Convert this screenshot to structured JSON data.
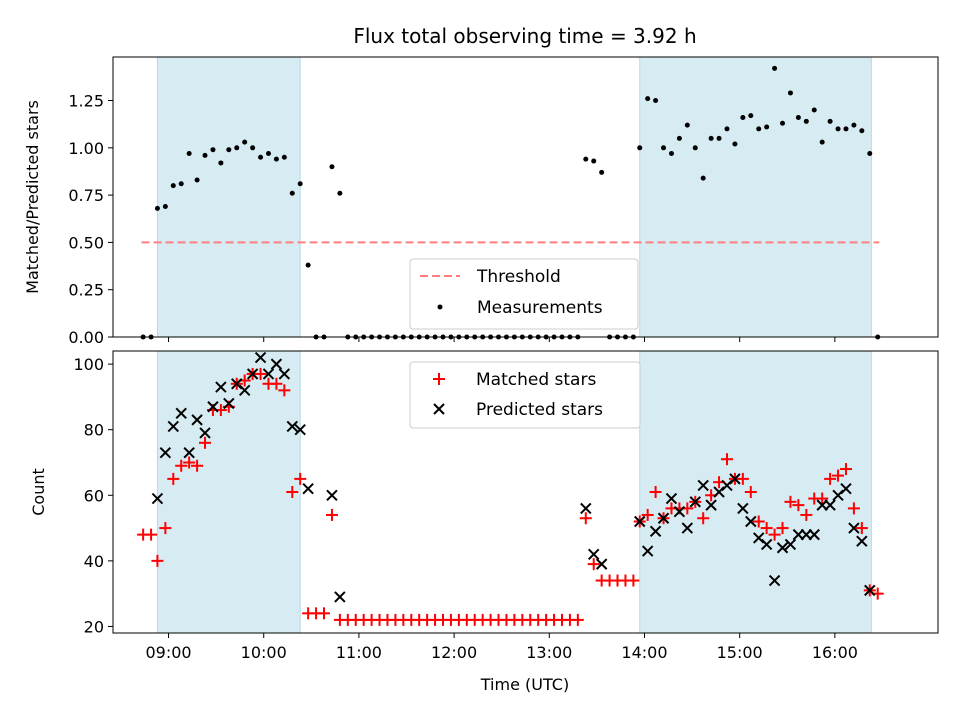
{
  "chart_data": [
    {
      "type": "scatter",
      "title": "Flux total observing time = 3.92 h",
      "xlabel": "",
      "ylabel": "Matched/Predicted stars",
      "ylim": [
        0,
        1.48
      ],
      "y_ticks": [
        0.0,
        0.25,
        0.5,
        0.75,
        1.0,
        1.25
      ],
      "y_tick_labels": [
        "0.00",
        "0.25",
        "0.50",
        "0.75",
        "1.00",
        "1.25"
      ],
      "legend_position": "lower center",
      "shaded_intervals": [
        [
          "08:53",
          "10:23"
        ],
        [
          "13:57",
          "16:23"
        ]
      ],
      "threshold": {
        "name": "Threshold",
        "value": 0.5,
        "x_range": [
          "08:43",
          "16:28"
        ],
        "color": "#ff7f7f",
        "style": "dashed"
      },
      "series": [
        {
          "name": "Measurements",
          "marker": "dot",
          "color": "#000000",
          "points": [
            [
              "08:44",
              0
            ],
            [
              "08:49",
              0
            ],
            [
              "08:53",
              0.68
            ],
            [
              "08:58",
              0.69
            ],
            [
              "09:03",
              0.8
            ],
            [
              "09:08",
              0.81
            ],
            [
              "09:13",
              0.97
            ],
            [
              "09:18",
              0.83
            ],
            [
              "09:23",
              0.96
            ],
            [
              "09:28",
              0.99
            ],
            [
              "09:33",
              0.92
            ],
            [
              "09:38",
              0.99
            ],
            [
              "09:43",
              1.0
            ],
            [
              "09:48",
              1.03
            ],
            [
              "09:53",
              1.0
            ],
            [
              "09:58",
              0.95
            ],
            [
              "10:03",
              0.97
            ],
            [
              "10:08",
              0.94
            ],
            [
              "10:13",
              0.95
            ],
            [
              "10:18",
              0.76
            ],
            [
              "10:23",
              0.81
            ],
            [
              "10:28",
              0.38
            ],
            [
              "10:33",
              0
            ],
            [
              "10:38",
              0
            ],
            [
              "10:43",
              0.9
            ],
            [
              "10:48",
              0.76
            ],
            [
              "10:53",
              0
            ],
            [
              "10:58",
              0
            ],
            [
              "11:03",
              0
            ],
            [
              "11:08",
              0
            ],
            [
              "11:13",
              0
            ],
            [
              "11:18",
              0
            ],
            [
              "11:23",
              0
            ],
            [
              "11:28",
              0
            ],
            [
              "11:33",
              0
            ],
            [
              "11:38",
              0
            ],
            [
              "11:43",
              0
            ],
            [
              "11:48",
              0
            ],
            [
              "11:53",
              0
            ],
            [
              "11:58",
              0
            ],
            [
              "12:03",
              0
            ],
            [
              "12:08",
              0
            ],
            [
              "12:13",
              0
            ],
            [
              "12:18",
              0
            ],
            [
              "12:23",
              0
            ],
            [
              "12:28",
              0
            ],
            [
              "12:33",
              0
            ],
            [
              "12:38",
              0
            ],
            [
              "12:43",
              0
            ],
            [
              "12:48",
              0
            ],
            [
              "12:53",
              0
            ],
            [
              "12:58",
              0
            ],
            [
              "13:03",
              0
            ],
            [
              "13:08",
              0
            ],
            [
              "13:13",
              0
            ],
            [
              "13:18",
              0
            ],
            [
              "13:23",
              0.94
            ],
            [
              "13:28",
              0.93
            ],
            [
              "13:33",
              0.87
            ],
            [
              "13:38",
              0
            ],
            [
              "13:43",
              0
            ],
            [
              "13:48",
              0
            ],
            [
              "13:53",
              0
            ],
            [
              "13:57",
              1.0
            ],
            [
              "14:02",
              1.26
            ],
            [
              "14:07",
              1.25
            ],
            [
              "14:12",
              1.0
            ],
            [
              "14:17",
              0.97
            ],
            [
              "14:22",
              1.05
            ],
            [
              "14:27",
              1.12
            ],
            [
              "14:32",
              1.0
            ],
            [
              "14:37",
              0.84
            ],
            [
              "14:42",
              1.05
            ],
            [
              "14:47",
              1.05
            ],
            [
              "14:52",
              1.1
            ],
            [
              "14:57",
              1.02
            ],
            [
              "15:02",
              1.16
            ],
            [
              "15:07",
              1.17
            ],
            [
              "15:12",
              1.1
            ],
            [
              "15:17",
              1.11
            ],
            [
              "15:22",
              1.42
            ],
            [
              "15:27",
              1.13
            ],
            [
              "15:32",
              1.29
            ],
            [
              "15:37",
              1.16
            ],
            [
              "15:42",
              1.14
            ],
            [
              "15:47",
              1.2
            ],
            [
              "15:52",
              1.03
            ],
            [
              "15:57",
              1.14
            ],
            [
              "16:02",
              1.1
            ],
            [
              "16:07",
              1.1
            ],
            [
              "16:12",
              1.12
            ],
            [
              "16:17",
              1.09
            ],
            [
              "16:22",
              0.97
            ],
            [
              "16:27",
              0
            ]
          ]
        }
      ]
    },
    {
      "type": "scatter",
      "title": "",
      "xlabel": "Time (UTC)",
      "ylabel": "Count",
      "ylim": [
        18,
        104
      ],
      "y_ticks": [
        20,
        40,
        60,
        80,
        100
      ],
      "y_tick_labels": [
        "20",
        "40",
        "60",
        "80",
        "100"
      ],
      "x_tick_labels": [
        "09:00",
        "10:00",
        "11:00",
        "12:00",
        "13:00",
        "14:00",
        "15:00",
        "16:00"
      ],
      "xlim": [
        "08:25",
        "17:05"
      ],
      "legend_position": "upper center",
      "shaded_intervals": [
        [
          "08:53",
          "10:23"
        ],
        [
          "13:57",
          "16:23"
        ]
      ],
      "series": [
        {
          "name": "Matched stars",
          "marker": "plus",
          "color": "#ff0000",
          "points": [
            [
              "08:44",
              48
            ],
            [
              "08:49",
              48
            ],
            [
              "08:53",
              40
            ],
            [
              "08:58",
              50
            ],
            [
              "09:03",
              65
            ],
            [
              "09:08",
              69
            ],
            [
              "09:13",
              70
            ],
            [
              "09:18",
              69
            ],
            [
              "09:23",
              76
            ],
            [
              "09:28",
              86
            ],
            [
              "09:33",
              86
            ],
            [
              "09:38",
              87
            ],
            [
              "09:43",
              94
            ],
            [
              "09:48",
              95
            ],
            [
              "09:53",
              97
            ],
            [
              "09:58",
              97
            ],
            [
              "10:03",
              94
            ],
            [
              "10:08",
              94
            ],
            [
              "10:13",
              92
            ],
            [
              "10:18",
              61
            ],
            [
              "10:23",
              65
            ],
            [
              "10:28",
              24
            ],
            [
              "10:33",
              24
            ],
            [
              "10:38",
              24
            ],
            [
              "10:43",
              54
            ],
            [
              "10:48",
              22
            ],
            [
              "10:53",
              22
            ],
            [
              "10:58",
              22
            ],
            [
              "11:03",
              22
            ],
            [
              "11:08",
              22
            ],
            [
              "11:13",
              22
            ],
            [
              "11:18",
              22
            ],
            [
              "11:23",
              22
            ],
            [
              "11:28",
              22
            ],
            [
              "11:33",
              22
            ],
            [
              "11:38",
              22
            ],
            [
              "11:43",
              22
            ],
            [
              "11:48",
              22
            ],
            [
              "11:53",
              22
            ],
            [
              "11:58",
              22
            ],
            [
              "12:03",
              22
            ],
            [
              "12:08",
              22
            ],
            [
              "12:13",
              22
            ],
            [
              "12:18",
              22
            ],
            [
              "12:23",
              22
            ],
            [
              "12:28",
              22
            ],
            [
              "12:33",
              22
            ],
            [
              "12:38",
              22
            ],
            [
              "12:43",
              22
            ],
            [
              "12:48",
              22
            ],
            [
              "12:53",
              22
            ],
            [
              "12:58",
              22
            ],
            [
              "13:03",
              22
            ],
            [
              "13:08",
              22
            ],
            [
              "13:13",
              22
            ],
            [
              "13:18",
              22
            ],
            [
              "13:23",
              53
            ],
            [
              "13:28",
              39
            ],
            [
              "13:33",
              34
            ],
            [
              "13:38",
              34
            ],
            [
              "13:43",
              34
            ],
            [
              "13:48",
              34
            ],
            [
              "13:53",
              34
            ],
            [
              "13:57",
              52
            ],
            [
              "14:02",
              54
            ],
            [
              "14:07",
              61
            ],
            [
              "14:12",
              53
            ],
            [
              "14:17",
              56
            ],
            [
              "14:22",
              56
            ],
            [
              "14:27",
              56
            ],
            [
              "14:32",
              58
            ],
            [
              "14:37",
              53
            ],
            [
              "14:42",
              60
            ],
            [
              "14:47",
              64
            ],
            [
              "14:52",
              71
            ],
            [
              "14:57",
              65
            ],
            [
              "15:02",
              65
            ],
            [
              "15:07",
              61
            ],
            [
              "15:12",
              52
            ],
            [
              "15:17",
              50
            ],
            [
              "15:22",
              48
            ],
            [
              "15:27",
              50
            ],
            [
              "15:32",
              58
            ],
            [
              "15:37",
              57
            ],
            [
              "15:42",
              54
            ],
            [
              "15:47",
              59
            ],
            [
              "15:52",
              59
            ],
            [
              "15:57",
              65
            ],
            [
              "16:02",
              66
            ],
            [
              "16:07",
              68
            ],
            [
              "16:12",
              56
            ],
            [
              "16:17",
              50
            ],
            [
              "16:22",
              31
            ],
            [
              "16:27",
              30
            ]
          ]
        },
        {
          "name": "Predicted stars",
          "marker": "x",
          "color": "#000000",
          "points": [
            [
              "08:53",
              59
            ],
            [
              "08:58",
              73
            ],
            [
              "09:03",
              81
            ],
            [
              "09:08",
              85
            ],
            [
              "09:13",
              73
            ],
            [
              "09:18",
              83
            ],
            [
              "09:23",
              79
            ],
            [
              "09:28",
              87
            ],
            [
              "09:33",
              93
            ],
            [
              "09:38",
              88
            ],
            [
              "09:43",
              94
            ],
            [
              "09:48",
              92
            ],
            [
              "09:53",
              97
            ],
            [
              "09:58",
              102
            ],
            [
              "10:03",
              97
            ],
            [
              "10:08",
              100
            ],
            [
              "10:13",
              97
            ],
            [
              "10:18",
              81
            ],
            [
              "10:23",
              80
            ],
            [
              "10:28",
              62
            ],
            [
              "10:43",
              60
            ],
            [
              "10:48",
              29
            ],
            [
              "13:23",
              56
            ],
            [
              "13:28",
              42
            ],
            [
              "13:33",
              39
            ],
            [
              "13:57",
              52
            ],
            [
              "14:02",
              43
            ],
            [
              "14:07",
              49
            ],
            [
              "14:12",
              53
            ],
            [
              "14:17",
              59
            ],
            [
              "14:22",
              55
            ],
            [
              "14:27",
              50
            ],
            [
              "14:32",
              58
            ],
            [
              "14:37",
              63
            ],
            [
              "14:42",
              57
            ],
            [
              "14:47",
              61
            ],
            [
              "14:52",
              63
            ],
            [
              "14:57",
              65
            ],
            [
              "15:02",
              56
            ],
            [
              "15:07",
              52
            ],
            [
              "15:12",
              47
            ],
            [
              "15:17",
              45
            ],
            [
              "15:22",
              34
            ],
            [
              "15:27",
              44
            ],
            [
              "15:32",
              45
            ],
            [
              "15:37",
              48
            ],
            [
              "15:42",
              48
            ],
            [
              "15:47",
              48
            ],
            [
              "15:52",
              57
            ],
            [
              "15:57",
              57
            ],
            [
              "16:02",
              60
            ],
            [
              "16:07",
              62
            ],
            [
              "16:12",
              50
            ],
            [
              "16:17",
              46
            ],
            [
              "16:22",
              31
            ]
          ]
        }
      ]
    }
  ],
  "colors": {
    "shade": "#add8e6",
    "threshold": "#ff7f7f",
    "matched": "#ff0000",
    "predicted": "#000000"
  }
}
